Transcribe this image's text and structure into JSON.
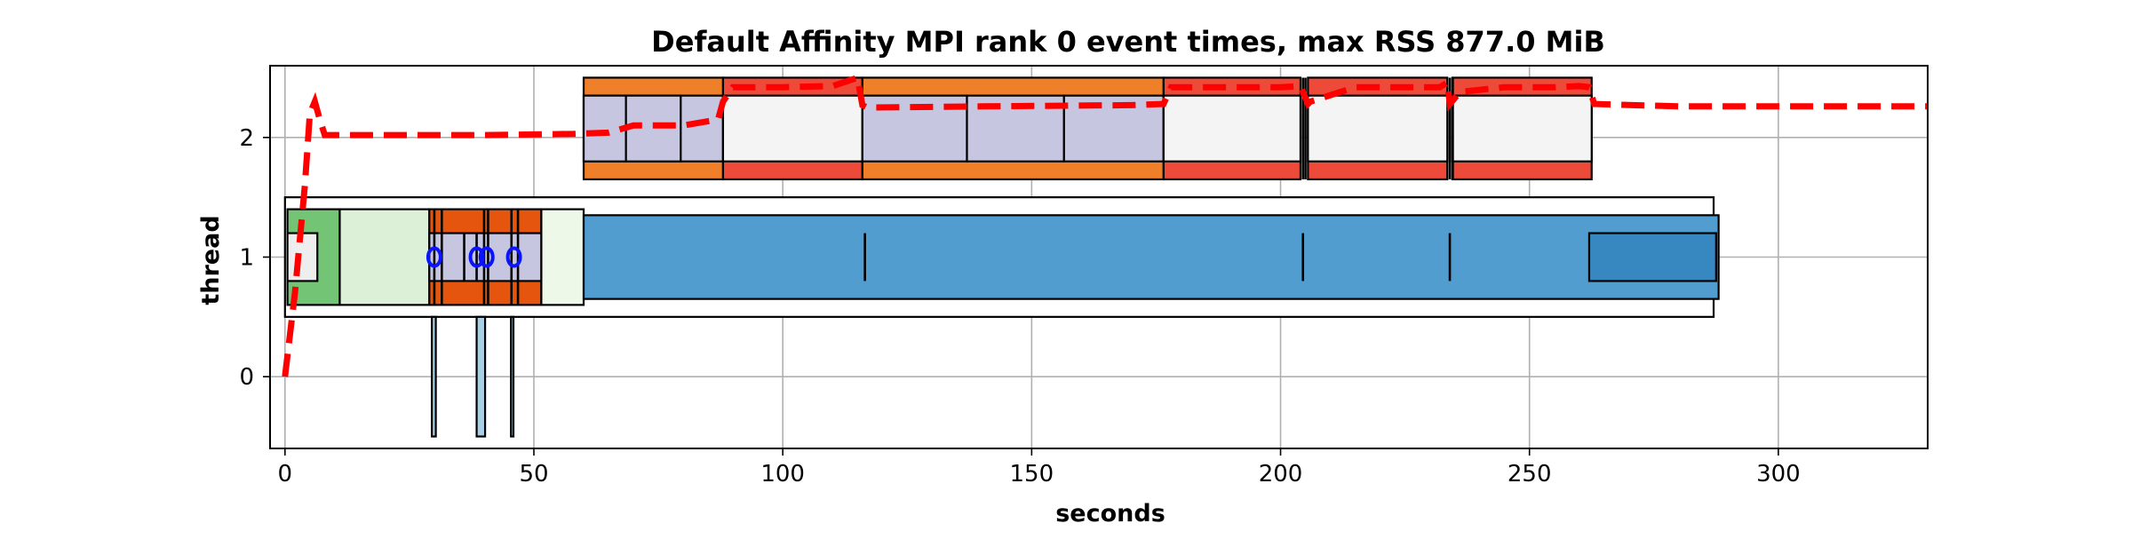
{
  "chart_data": {
    "type": "timeline",
    "title": "Default Affinity MPI rank 0 event times, max RSS 877.0 MiB",
    "xlabel": "seconds",
    "ylabel": "thread",
    "xlim": [
      -3,
      330
    ],
    "ylim": [
      -0.6,
      2.6
    ],
    "xticks": [
      0,
      50,
      100,
      150,
      200,
      250,
      300
    ],
    "yticks": [
      0,
      1,
      2
    ],
    "grid": true,
    "colors": {
      "dark_green": "#74c476",
      "light_green": "#dbf0d6",
      "pale_green": "#edf8e9",
      "dark_orange": "#e6550d",
      "orange": "#f07f29",
      "lavender": "#c6c6e1",
      "light_gray": "#f4f4f4",
      "red": "#ed4a3a",
      "blue_fill": "#519dd0",
      "blue_dark": "#3787c0",
      "blue_edge": "#0a14ff",
      "light_blue": "#a9cfe5",
      "rss_line": "#ff0000"
    },
    "events": [
      {
        "x0": 0,
        "x1": 287,
        "y0": 0.5,
        "y1": 1.5,
        "fill": "#ffffff"
      },
      {
        "x0": 0.5,
        "x1": 11,
        "y0": 0.6,
        "y1": 1.4,
        "fill": "#74c476"
      },
      {
        "x0": 0.5,
        "x1": 6.5,
        "y0": 0.8,
        "y1": 1.2,
        "fill": "#eeeeee"
      },
      {
        "x0": 11,
        "x1": 29,
        "y0": 0.6,
        "y1": 1.4,
        "fill": "#dbf0d6"
      },
      {
        "x0": 29,
        "x1": 51.5,
        "y0": 0.6,
        "y1": 1.4,
        "fill": "#e6550d"
      },
      {
        "x0": 29,
        "x1": 51.5,
        "y0": 0.8,
        "y1": 1.2,
        "fill": "#c6c6e1"
      },
      {
        "x0": 51.5,
        "x1": 60,
        "y0": 0.6,
        "y1": 1.4,
        "fill": "#edf8e9"
      },
      {
        "x0": 60,
        "x1": 288,
        "y0": 0.65,
        "y1": 1.35,
        "fill": "#519dd0",
        "stroke": "#0a14ff",
        "stroke_width": 7
      },
      {
        "x0": 262,
        "x1": 287.5,
        "y0": 0.8,
        "y1": 1.2,
        "fill": "#3787c0"
      },
      {
        "x0": 60,
        "x1": 88,
        "y0": 1.65,
        "y1": 2.5,
        "fill": "#f07f29"
      },
      {
        "x0": 60,
        "x1": 88,
        "y0": 1.8,
        "y1": 2.35,
        "fill": "#c6c6e1"
      },
      {
        "x0": 60,
        "x1": 68.5,
        "y0": 1.8,
        "y1": 2.35,
        "fill": "#c6c6e1"
      },
      {
        "x0": 68.5,
        "x1": 79.5,
        "y0": 1.8,
        "y1": 2.35,
        "fill": "#c6c6e1"
      },
      {
        "x0": 88,
        "x1": 116,
        "y0": 1.65,
        "y1": 2.5,
        "fill": "#ed4a3a"
      },
      {
        "x0": 88,
        "x1": 116,
        "y0": 1.8,
        "y1": 2.35,
        "fill": "#f4f4f4"
      },
      {
        "x0": 116,
        "x1": 176.5,
        "y0": 1.65,
        "y1": 2.5,
        "fill": "#f07f29"
      },
      {
        "x0": 116,
        "x1": 137,
        "y0": 1.8,
        "y1": 2.35,
        "fill": "#c6c6e1"
      },
      {
        "x0": 137,
        "x1": 156.5,
        "y0": 1.8,
        "y1": 2.35,
        "fill": "#c6c6e1"
      },
      {
        "x0": 156.5,
        "x1": 176.5,
        "y0": 1.8,
        "y1": 2.35,
        "fill": "#c6c6e1"
      },
      {
        "x0": 176.5,
        "x1": 204,
        "y0": 1.65,
        "y1": 2.5,
        "fill": "#ed4a3a"
      },
      {
        "x0": 176.5,
        "x1": 204,
        "y0": 1.8,
        "y1": 2.35,
        "fill": "#f4f4f4"
      },
      {
        "x0": 205.5,
        "x1": 233.5,
        "y0": 1.65,
        "y1": 2.5,
        "fill": "#ed4a3a"
      },
      {
        "x0": 205.5,
        "x1": 233.5,
        "y0": 1.8,
        "y1": 2.35,
        "fill": "#f4f4f4"
      },
      {
        "x0": 234.5,
        "x1": 262.5,
        "y0": 1.65,
        "y1": 2.5,
        "fill": "#ed4a3a"
      },
      {
        "x0": 234.5,
        "x1": 262.5,
        "y0": 1.8,
        "y1": 2.35,
        "fill": "#f4f4f4"
      },
      {
        "x0": 29.5,
        "x1": 30.3,
        "y0": -0.5,
        "y1": 0.5,
        "fill": "#a9cfe5"
      },
      {
        "x0": 38.5,
        "x1": 40.2,
        "y0": -0.5,
        "y1": 0.5,
        "fill": "#a9cfe5"
      },
      {
        "x0": 45.4,
        "x1": 45.9,
        "y0": -0.5,
        "y1": 0.5,
        "fill": "#a9cfe5"
      }
    ],
    "vlines": [
      {
        "x": 116.5,
        "y0": 0.8,
        "y1": 1.2
      },
      {
        "x": 204.5,
        "y0": 0.8,
        "y1": 1.2
      },
      {
        "x": 234,
        "y0": 0.8,
        "y1": 1.2
      },
      {
        "x": 30,
        "y0": 0.6,
        "y1": 1.4
      },
      {
        "x": 31.5,
        "y0": 0.6,
        "y1": 1.4
      },
      {
        "x": 36,
        "y0": 0.8,
        "y1": 1.2
      },
      {
        "x": 38.5,
        "y0": 0.8,
        "y1": 1.2
      },
      {
        "x": 40,
        "y0": 0.6,
        "y1": 1.4
      },
      {
        "x": 40.8,
        "y0": 0.6,
        "y1": 1.4
      },
      {
        "x": 45.5,
        "y0": 0.6,
        "y1": 1.4
      },
      {
        "x": 46.8,
        "y0": 0.6,
        "y1": 1.4
      },
      {
        "x": 204.5,
        "y0": 1.65,
        "y1": 2.5
      },
      {
        "x": 205,
        "y0": 1.65,
        "y1": 2.5
      },
      {
        "x": 234,
        "y0": 1.65,
        "y1": 2.5
      },
      {
        "x": 234.6,
        "y0": 1.65,
        "y1": 2.5
      }
    ],
    "blue_markers": [
      {
        "x": 30,
        "y": 1.0
      },
      {
        "x": 38.5,
        "y": 1.0
      },
      {
        "x": 40.5,
        "y": 1.0
      },
      {
        "x": 46,
        "y": 1.0
      }
    ],
    "rss_line": {
      "name": "max RSS",
      "x": [
        0,
        2,
        4,
        5,
        6,
        7,
        8,
        20,
        40,
        58,
        65,
        70,
        80,
        87,
        88,
        90,
        100,
        110,
        115,
        116,
        117,
        140,
        170,
        176.5,
        178,
        190,
        200,
        204,
        205.5,
        206,
        215,
        225,
        232,
        233.5,
        234,
        236,
        245,
        255,
        260,
        262,
        263,
        280,
        300,
        330
      ],
      "y": [
        0,
        0.7,
        1.6,
        2.2,
        2.3,
        2.15,
        2.02,
        2.02,
        2.02,
        2.03,
        2.04,
        2.1,
        2.1,
        2.15,
        2.3,
        2.42,
        2.42,
        2.43,
        2.5,
        2.27,
        2.25,
        2.26,
        2.27,
        2.28,
        2.42,
        2.42,
        2.42,
        2.43,
        2.28,
        2.3,
        2.42,
        2.42,
        2.42,
        2.46,
        2.28,
        2.38,
        2.42,
        2.42,
        2.43,
        2.42,
        2.28,
        2.26,
        2.26,
        2.26
      ]
    }
  }
}
